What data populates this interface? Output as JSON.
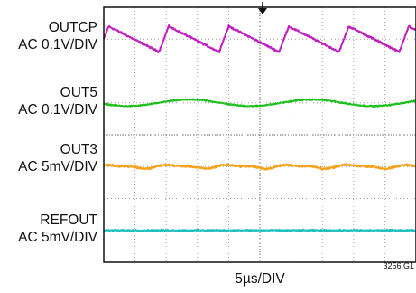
{
  "chart_data": {
    "type": "line",
    "title": "",
    "xlabel": "5µs/DIV",
    "figure_id": "3256 G1",
    "time_per_div": "5µs",
    "x_divisions": 10,
    "y_divisions": 8,
    "grid": true,
    "series": [
      {
        "name": "OUTCP",
        "scale": "AC 0.1V/DIV",
        "color": "#bf1fbf",
        "shape": "sawtooth",
        "center_div": 7.0,
        "amplitude_div": 0.4,
        "cycles_per_screen": 5.2,
        "phase": 0.08,
        "noise_div": 0.04
      },
      {
        "name": "OUT5",
        "scale": "AC 0.1V/DIV",
        "color": "#1fbf1f",
        "shape": "sine",
        "center_div": 5.0,
        "amplitude_div": 0.1,
        "cycles_per_screen": 2.55,
        "phase": 0.55,
        "noise_div": 0.025
      },
      {
        "name": "OUT3",
        "scale": "AC 5mV/DIV",
        "color": "#f5a11a",
        "shape": "ripple",
        "center_div": 3.0,
        "amplitude_div": 0.07,
        "cycles_per_screen": 5.2,
        "phase": 0.1,
        "noise_div": 0.045
      },
      {
        "name": "REFOUT",
        "scale": "AC 5mV/DIV",
        "color": "#1fbfbf",
        "shape": "noise",
        "center_div": 1.0,
        "amplitude_div": 0.0,
        "cycles_per_screen": 0,
        "phase": 0,
        "noise_div": 0.035
      }
    ]
  }
}
